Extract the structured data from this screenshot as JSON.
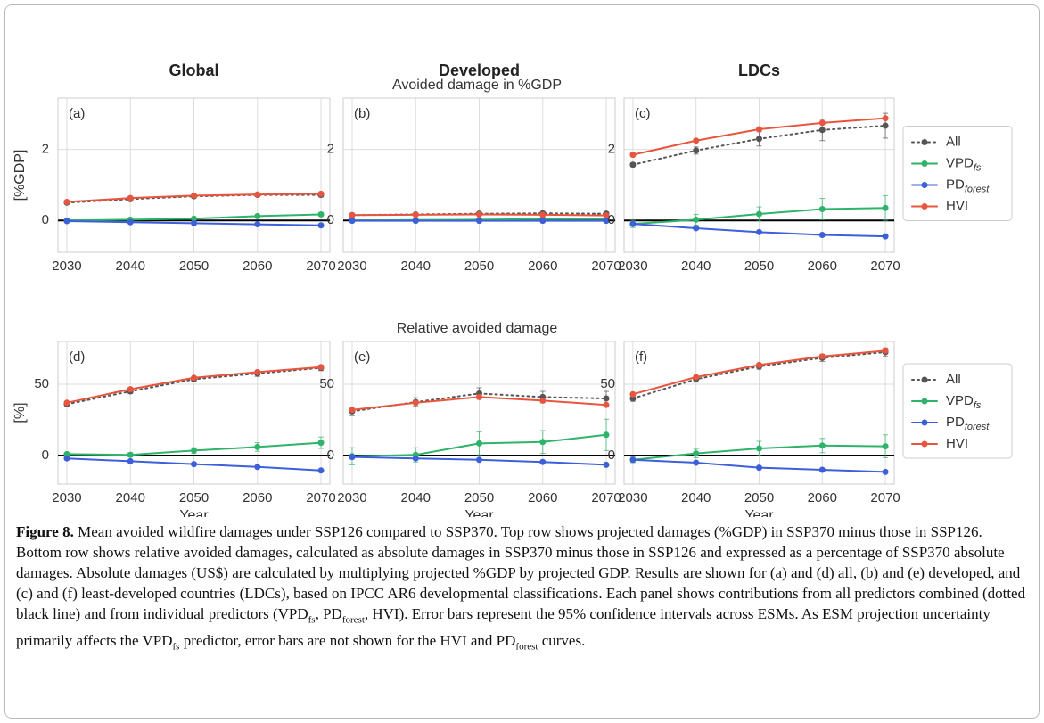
{
  "column_titles": [
    "Global",
    "Developed",
    "LDCs"
  ],
  "row_titles": [
    "Avoided damage in %GDP",
    "Relative avoided damage"
  ],
  "chart_data": [
    {
      "type": "line",
      "panel_label": "(a)",
      "ylabel": "[%GDP]",
      "x": [
        2030,
        2040,
        2050,
        2060,
        2070
      ],
      "xlim": [
        2028.6,
        2071.4
      ],
      "xticks": [
        2030,
        2040,
        2050,
        2060,
        2070
      ],
      "ylim": [
        -0.9,
        3.45
      ],
      "yticks": [
        0,
        2
      ],
      "grid": true,
      "reference_line": 0,
      "series": [
        {
          "color": "#555555",
          "dashed": true,
          "values": [
            0.5,
            0.6,
            0.68,
            0.72,
            0.72
          ],
          "errors": [
            0.04,
            0.05,
            0.05,
            0.05,
            0.06
          ]
        },
        {
          "color": "#2fb36a",
          "values": [
            0,
            0.02,
            0.05,
            0.12,
            0.17
          ],
          "errors": [
            0.02,
            0.02,
            0.03,
            0.04,
            0.05
          ]
        },
        {
          "color": "#3d5fd9",
          "values": [
            -0.02,
            -0.05,
            -0.08,
            -0.11,
            -0.14
          ]
        },
        {
          "color": "#e8553f",
          "values": [
            0.52,
            0.63,
            0.7,
            0.73,
            0.75
          ]
        }
      ]
    },
    {
      "type": "line",
      "panel_label": "(b)",
      "x": [
        2030,
        2040,
        2050,
        2060,
        2070
      ],
      "xlim": [
        2028.6,
        2071.4
      ],
      "xticks": [
        2030,
        2040,
        2050,
        2060,
        2070
      ],
      "ylim": [
        -0.9,
        3.45
      ],
      "yticks": [
        0,
        2
      ],
      "grid": true,
      "reference_line": 0,
      "series": [
        {
          "color": "#555555",
          "dashed": true,
          "values": [
            0.15,
            0.17,
            0.19,
            0.2,
            0.19
          ],
          "errors": [
            0.02,
            0.02,
            0.03,
            0.04,
            0.04
          ]
        },
        {
          "color": "#2fb36a",
          "values": [
            0,
            0.01,
            0.02,
            0.04,
            0.05
          ],
          "errors": [
            0.01,
            0.02,
            0.02,
            0.03,
            0.04
          ]
        },
        {
          "color": "#3d5fd9",
          "values": [
            -0.01,
            -0.01,
            -0.01,
            -0.01,
            -0.01
          ]
        },
        {
          "color": "#e8553f",
          "values": [
            0.15,
            0.16,
            0.17,
            0.16,
            0.14
          ]
        }
      ]
    },
    {
      "type": "line",
      "panel_label": "(c)",
      "x": [
        2030,
        2040,
        2050,
        2060,
        2070
      ],
      "xlim": [
        2028.6,
        2071.4
      ],
      "xticks": [
        2030,
        2040,
        2050,
        2060,
        2070
      ],
      "ylim": [
        -0.9,
        3.45
      ],
      "yticks": [
        0,
        2
      ],
      "grid": true,
      "reference_line": 0,
      "legend": "outside right",
      "series": [
        {
          "name": "All",
          "color": "#555555",
          "dashed": true,
          "values": [
            1.57,
            1.97,
            2.3,
            2.55,
            2.67
          ],
          "errors": [
            0.05,
            0.1,
            0.2,
            0.3,
            0.35
          ]
        },
        {
          "name": "VPD",
          "subscript": "fs",
          "color": "#2fb36a",
          "values": [
            -0.1,
            0.02,
            0.18,
            0.32,
            0.35
          ],
          "errors": [
            0.1,
            0.15,
            0.2,
            0.3,
            0.35
          ]
        },
        {
          "name": "PD",
          "subscript": "forest",
          "color": "#3d5fd9",
          "values": [
            -0.1,
            -0.22,
            -0.33,
            -0.41,
            -0.45
          ]
        },
        {
          "name": "HVI",
          "color": "#e8553f",
          "values": [
            1.85,
            2.25,
            2.57,
            2.75,
            2.88
          ]
        }
      ]
    },
    {
      "type": "line",
      "panel_label": "(d)",
      "ylabel": "[%]",
      "xlabel": "Year",
      "x": [
        2030,
        2040,
        2050,
        2060,
        2070
      ],
      "xlim": [
        2028.6,
        2071.4
      ],
      "xticks": [
        2030,
        2040,
        2050,
        2060,
        2070
      ],
      "ylim": [
        -20,
        80
      ],
      "yticks": [
        0,
        50
      ],
      "grid": true,
      "reference_line": 0,
      "series": [
        {
          "color": "#555555",
          "dashed": true,
          "values": [
            36,
            45,
            53.5,
            57.5,
            61.5
          ],
          "errors": [
            1,
            1.5,
            1.5,
            2,
            2
          ]
        },
        {
          "color": "#2fb36a",
          "values": [
            1,
            0.5,
            3.5,
            6,
            9
          ],
          "errors": [
            1,
            1.5,
            2,
            3,
            4
          ]
        },
        {
          "color": "#3d5fd9",
          "values": [
            -2,
            -4,
            -6,
            -8,
            -10.5
          ]
        },
        {
          "color": "#e8553f",
          "values": [
            37,
            46.5,
            54.5,
            58.5,
            62
          ]
        }
      ]
    },
    {
      "type": "line",
      "panel_label": "(e)",
      "xlabel": "Year",
      "x": [
        2030,
        2040,
        2050,
        2060,
        2070
      ],
      "xlim": [
        2028.6,
        2071.4
      ],
      "xticks": [
        2030,
        2040,
        2050,
        2060,
        2070
      ],
      "ylim": [
        -20,
        80
      ],
      "yticks": [
        0,
        50
      ],
      "grid": true,
      "reference_line": 0,
      "series": [
        {
          "color": "#555555",
          "dashed": true,
          "values": [
            31,
            37.5,
            43.5,
            41,
            40
          ],
          "errors": [
            3,
            3,
            4,
            4,
            5
          ]
        },
        {
          "color": "#2fb36a",
          "values": [
            -0.5,
            0.5,
            8.5,
            9.5,
            14.5
          ],
          "errors": [
            6,
            5,
            8,
            8,
            11
          ]
        },
        {
          "color": "#3d5fd9",
          "values": [
            -1,
            -2,
            -3,
            -4.5,
            -6.5
          ]
        },
        {
          "color": "#e8553f",
          "values": [
            32,
            37,
            41,
            38.5,
            35.5
          ]
        }
      ]
    },
    {
      "type": "line",
      "panel_label": "(f)",
      "xlabel": "Year",
      "x": [
        2030,
        2040,
        2050,
        2060,
        2070
      ],
      "xlim": [
        2028.6,
        2071.4
      ],
      "xticks": [
        2030,
        2040,
        2050,
        2060,
        2070
      ],
      "ylim": [
        -20,
        80
      ],
      "yticks": [
        0,
        50
      ],
      "grid": true,
      "reference_line": 0,
      "legend": "outside right",
      "series": [
        {
          "name": "All",
          "color": "#555555",
          "dashed": true,
          "values": [
            40,
            53.5,
            62.5,
            68.5,
            72.5
          ],
          "errors": [
            2,
            2,
            2,
            2.5,
            3
          ]
        },
        {
          "name": "VPD",
          "subscript": "fs",
          "color": "#2fb36a",
          "values": [
            -3,
            1.5,
            5,
            7,
            6.5
          ],
          "errors": [
            2,
            3,
            5,
            5,
            8
          ]
        },
        {
          "name": "PD",
          "subscript": "forest",
          "color": "#3d5fd9",
          "values": [
            -3,
            -5,
            -8.5,
            -10,
            -11.5
          ]
        },
        {
          "name": "HVI",
          "color": "#e8553f",
          "values": [
            43,
            55,
            63.5,
            69.5,
            73.5
          ]
        }
      ]
    }
  ],
  "caption": {
    "label": "Figure 8.",
    "runs": [
      "Mean avoided wildfire damages under SSP126 compared to SSP370. Top row shows projected damages (%GDP) in SSP370 minus those in SSP126. Bottom row shows relative avoided damages, calculated as absolute damages in SSP370 minus those in SSP126 and expressed as a percentage of SSP370 absolute damages. Absolute damages (US$) are calculated by multiplying projected %GDP by projected GDP. Results are shown for (a) and (d) all, (b) and (e) developed, and (c) and (f) least-developed countries (LDCs), based on IPCC AR6 developmental classifications. Each panel shows contributions from all predictors combined (dotted black line) and from individual predictors (VPD",
      "fs",
      ", PD",
      "forest",
      ", HVI). Error bars represent the 95% confidence intervals across ESMs. As ESM projection uncertainty primarily affects the VPD",
      "fs",
      " predictor, error bars are not shown for the HVI and PD",
      "forest",
      " curves."
    ]
  }
}
